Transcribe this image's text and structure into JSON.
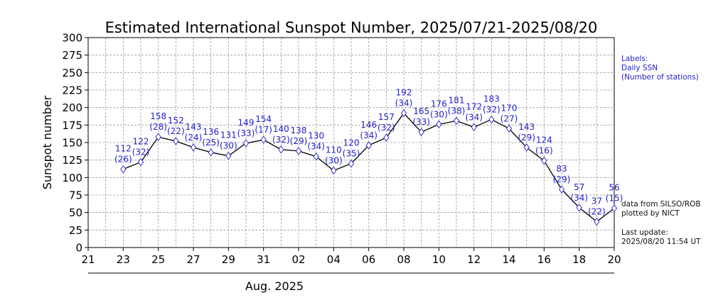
{
  "chart_data": {
    "type": "line",
    "title": "Estimated International Sunspot Number, 2025/07/21-2025/08/20",
    "xlabel": "Aug. 2025",
    "ylabel": "Sunspot number",
    "ylim": [
      0,
      300
    ],
    "yticks": [
      0,
      25,
      50,
      75,
      100,
      125,
      150,
      175,
      200,
      225,
      250,
      275,
      300
    ],
    "x_start_day_index": 0,
    "x_end_day_index": 30,
    "x_tick_labels": [
      "21",
      "23",
      "25",
      "27",
      "29",
      "31",
      "02",
      "04",
      "06",
      "08",
      "10",
      "12",
      "14",
      "16",
      "18",
      "20"
    ],
    "dates": [
      "23",
      "24",
      "25",
      "26",
      "27",
      "28",
      "29",
      "30",
      "31",
      "01",
      "02",
      "03",
      "04",
      "05",
      "06",
      "07",
      "08",
      "09",
      "10",
      "11",
      "12",
      "13",
      "14",
      "15",
      "16",
      "17",
      "18",
      "19",
      "20"
    ],
    "x": [
      2,
      3,
      4,
      5,
      6,
      7,
      8,
      9,
      10,
      11,
      12,
      13,
      14,
      15,
      16,
      17,
      18,
      19,
      20,
      21,
      22,
      23,
      24,
      25,
      26,
      27,
      28,
      29,
      30
    ],
    "values": [
      112,
      122,
      158,
      152,
      143,
      136,
      131,
      149,
      154,
      140,
      138,
      130,
      110,
      120,
      146,
      157,
      192,
      165,
      176,
      181,
      172,
      183,
      170,
      143,
      124,
      83,
      57,
      37,
      56
    ],
    "stations": [
      26,
      32,
      28,
      22,
      24,
      25,
      30,
      33,
      17,
      32,
      29,
      34,
      30,
      35,
      34,
      32,
      34,
      33,
      30,
      38,
      34,
      32,
      27,
      29,
      16,
      29,
      34,
      22,
      15
    ],
    "grid": true,
    "line_color": "#000000",
    "marker_color": "#3333cc",
    "label_color": "#2222cc"
  },
  "notes": {
    "labels_title": "Labels:",
    "labels_line1": "Daily SSN",
    "labels_line2": "(Number of stations)",
    "source_line1": "data from SILSO/ROB",
    "source_line2": "plotted by NICT",
    "update_line1": "Last update:",
    "update_line2": "2025/08/20 11:54 UT"
  }
}
